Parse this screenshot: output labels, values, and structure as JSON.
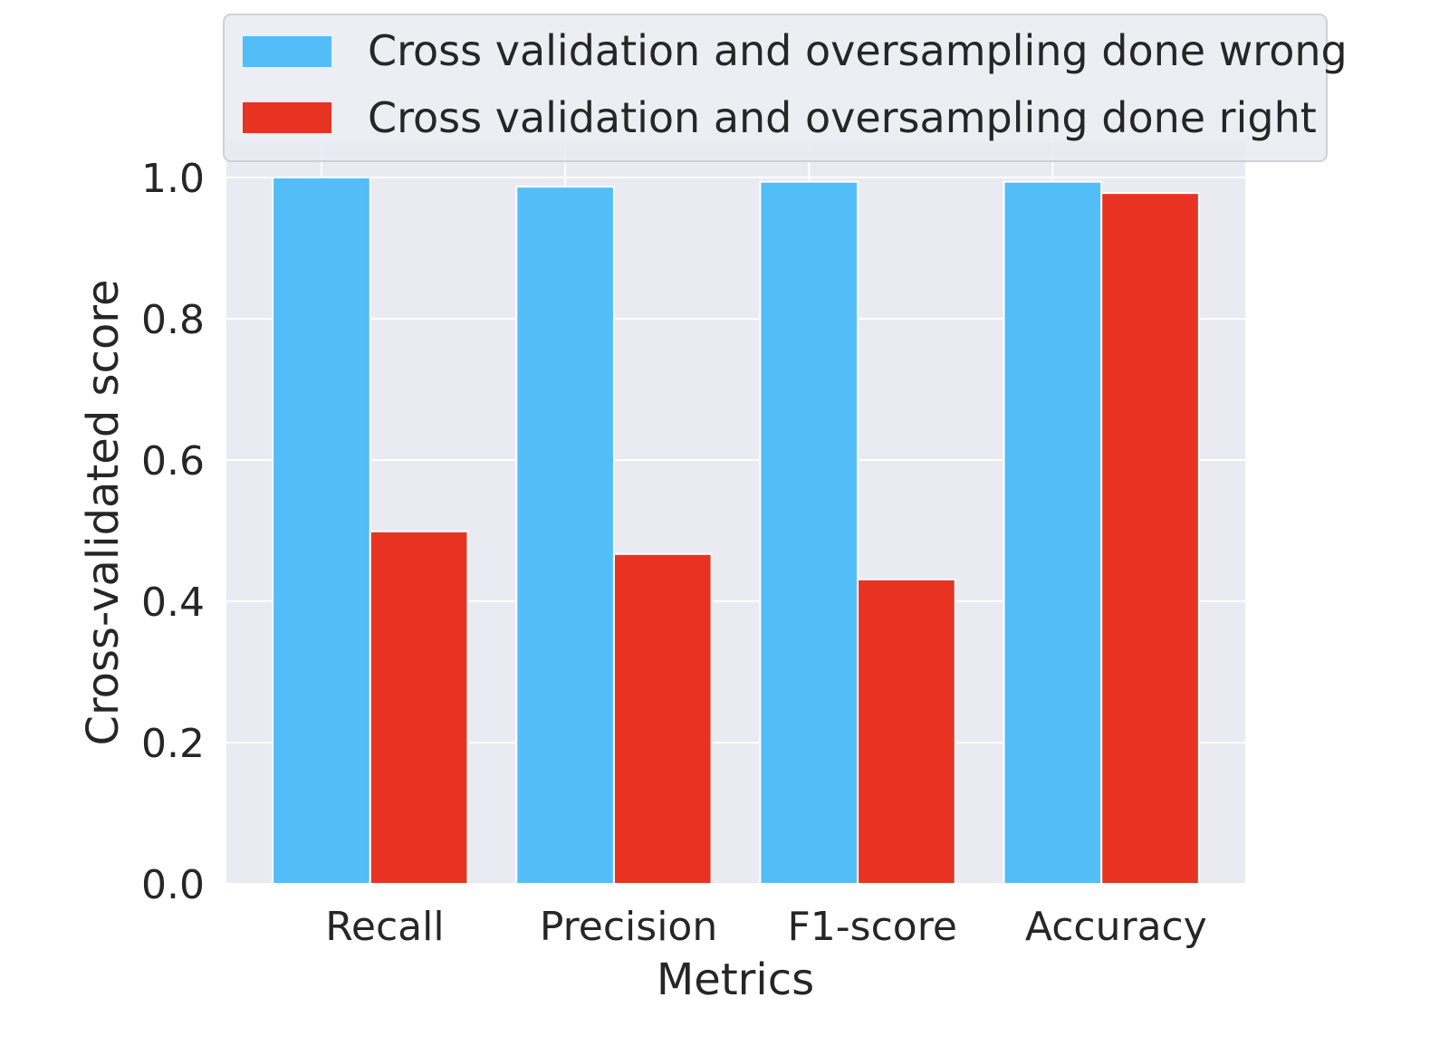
{
  "chart_data": {
    "type": "bar",
    "title": "",
    "xlabel": "Metrics",
    "ylabel": "Cross-validated score",
    "categories": [
      "Recall",
      "Precision",
      "F1-score",
      "Accuracy"
    ],
    "series": [
      {
        "name": "Cross validation and oversampling done wrong",
        "color": "#53bdf8",
        "values": [
          1.0,
          0.987,
          0.994,
          0.994
        ]
      },
      {
        "name": "Cross validation and oversampling done right",
        "color": "#e83323",
        "values": [
          0.499,
          0.467,
          0.431,
          0.978
        ]
      }
    ],
    "ylim": [
      0,
      1.05
    ],
    "yticks": [
      "0.0",
      "0.2",
      "0.4",
      "0.6",
      "0.8",
      "1.0"
    ],
    "grid": true,
    "background": "#eaeaf2",
    "legend_position": "top"
  }
}
